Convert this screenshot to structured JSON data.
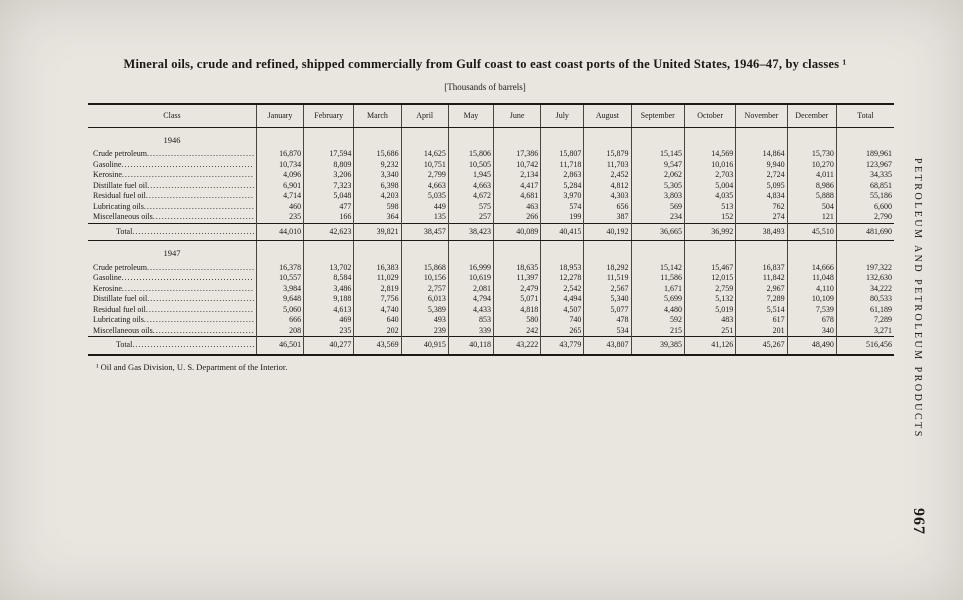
{
  "colors": {
    "paper": "#e9e6e0",
    "ink": "#1b1815"
  },
  "page": {
    "title": "Mineral oils, crude and refined, shipped commercially from Gulf coast to east coast ports of the United States, 1946–47, by classes ¹",
    "subtitle": "[Thousands of barrels]",
    "footnote": "¹ Oil and Gas Division, U. S. Department of the Interior.",
    "side_label": "PETROLEUM AND PETROLEUM PRODUCTS",
    "page_number": "967"
  },
  "table": {
    "columns": [
      "Class",
      "January",
      "February",
      "March",
      "April",
      "May",
      "June",
      "July",
      "August",
      "September",
      "October",
      "November",
      "December",
      "Total"
    ],
    "sections": [
      {
        "year": "1946",
        "rows": [
          {
            "label": "Crude petroleum",
            "values": [
              "16,870",
              "17,594",
              "15,686",
              "14,625",
              "15,806",
              "17,386",
              "15,807",
              "15,879",
              "15,145",
              "14,569",
              "14,864",
              "15,730",
              "189,961"
            ]
          },
          {
            "label": "Gasoline",
            "values": [
              "10,734",
              "8,809",
              "9,232",
              "10,751",
              "10,505",
              "10,742",
              "11,718",
              "11,703",
              "9,547",
              "10,016",
              "9,940",
              "10,270",
              "123,967"
            ]
          },
          {
            "label": "Kerosine",
            "values": [
              "4,096",
              "3,206",
              "3,340",
              "2,799",
              "1,945",
              "2,134",
              "2,863",
              "2,452",
              "2,062",
              "2,703",
              "2,724",
              "4,011",
              "34,335"
            ]
          },
          {
            "label": "Distillate fuel oil",
            "values": [
              "6,901",
              "7,323",
              "6,398",
              "4,663",
              "4,663",
              "4,417",
              "5,284",
              "4,812",
              "5,305",
              "5,004",
              "5,095",
              "8,986",
              "68,851"
            ]
          },
          {
            "label": "Residual fuel oil",
            "values": [
              "4,714",
              "5,048",
              "4,203",
              "5,035",
              "4,672",
              "4,681",
              "3,970",
              "4,303",
              "3,803",
              "4,035",
              "4,834",
              "5,888",
              "55,186"
            ]
          },
          {
            "label": "Lubricating oils",
            "values": [
              "460",
              "477",
              "598",
              "449",
              "575",
              "463",
              "574",
              "656",
              "569",
              "513",
              "762",
              "504",
              "6,600"
            ]
          },
          {
            "label": "Miscellaneous oils",
            "values": [
              "235",
              "166",
              "364",
              "135",
              "257",
              "266",
              "199",
              "387",
              "234",
              "152",
              "274",
              "121",
              "2,790"
            ]
          }
        ],
        "total": {
          "label": "Total",
          "values": [
            "44,010",
            "42,623",
            "39,821",
            "38,457",
            "38,423",
            "40,089",
            "40,415",
            "40,192",
            "36,665",
            "36,992",
            "38,493",
            "45,510",
            "481,690"
          ]
        }
      },
      {
        "year": "1947",
        "rows": [
          {
            "label": "Crude petroleum",
            "values": [
              "16,378",
              "13,702",
              "16,383",
              "15,868",
              "16,999",
              "18,635",
              "18,953",
              "18,292",
              "15,142",
              "15,467",
              "16,837",
              "14,666",
              "197,322"
            ]
          },
          {
            "label": "Gasoline",
            "values": [
              "10,557",
              "8,584",
              "11,029",
              "10,156",
              "10,619",
              "11,397",
              "12,278",
              "11,519",
              "11,586",
              "12,015",
              "11,842",
              "11,048",
              "132,630"
            ]
          },
          {
            "label": "Kerosine",
            "values": [
              "3,984",
              "3,486",
              "2,819",
              "2,757",
              "2,081",
              "2,479",
              "2,542",
              "2,567",
              "1,671",
              "2,759",
              "2,967",
              "4,110",
              "34,222"
            ]
          },
          {
            "label": "Distillate fuel oil",
            "values": [
              "9,648",
              "9,188",
              "7,756",
              "6,013",
              "4,794",
              "5,071",
              "4,494",
              "5,340",
              "5,699",
              "5,132",
              "7,289",
              "10,109",
              "80,533"
            ]
          },
          {
            "label": "Residual fuel oil",
            "values": [
              "5,060",
              "4,613",
              "4,740",
              "5,389",
              "4,433",
              "4,818",
              "4,507",
              "5,077",
              "4,480",
              "5,019",
              "5,514",
              "7,539",
              "61,189"
            ]
          },
          {
            "label": "Lubricating oils",
            "values": [
              "666",
              "469",
              "640",
              "493",
              "853",
              "580",
              "740",
              "478",
              "592",
              "483",
              "617",
              "678",
              "7,289"
            ]
          },
          {
            "label": "Miscellaneous oils",
            "values": [
              "208",
              "235",
              "202",
              "239",
              "339",
              "242",
              "265",
              "534",
              "215",
              "251",
              "201",
              "340",
              "3,271"
            ]
          }
        ],
        "total": {
          "label": "Total",
          "values": [
            "46,501",
            "40,277",
            "43,569",
            "40,915",
            "40,118",
            "43,222",
            "43,779",
            "43,807",
            "39,385",
            "41,126",
            "45,267",
            "48,490",
            "516,456"
          ]
        }
      }
    ]
  }
}
